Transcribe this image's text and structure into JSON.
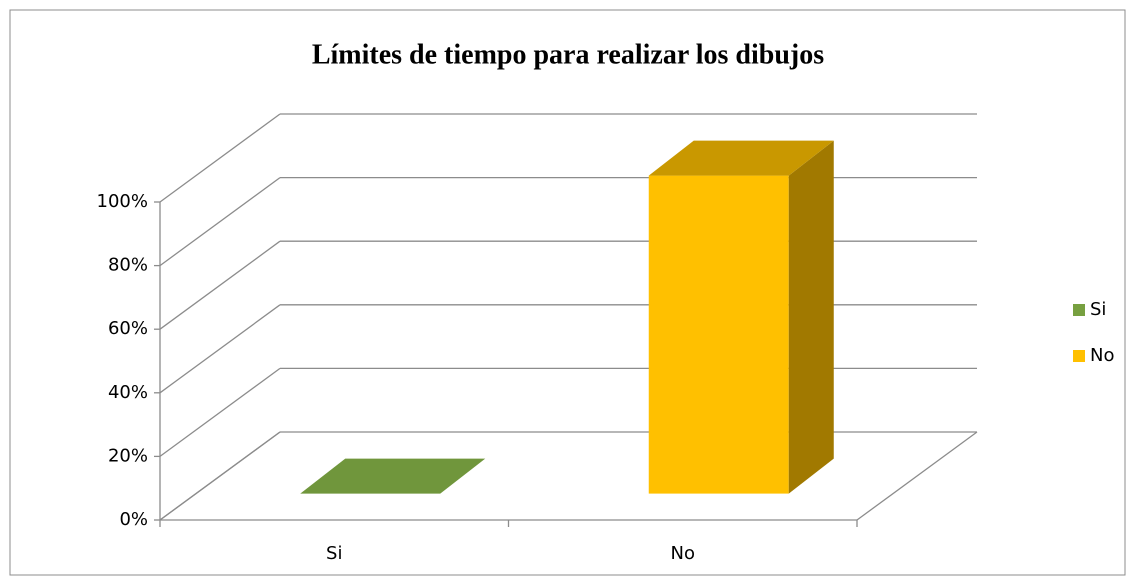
{
  "chart_data": {
    "type": "bar3d",
    "title": "Límites de tiempo para realizar los dibujos",
    "categories": [
      "Si",
      "No"
    ],
    "values": [
      0,
      100
    ],
    "colors": [
      "#77a040",
      "#ffc000"
    ],
    "ylim": [
      0,
      100
    ],
    "yticks": [
      {
        "value": 0,
        "label": "0%"
      },
      {
        "value": 20,
        "label": "20%"
      },
      {
        "value": 40,
        "label": "40%"
      },
      {
        "value": 60,
        "label": "60%"
      },
      {
        "value": 80,
        "label": "80%"
      },
      {
        "value": 100,
        "label": "100%"
      }
    ],
    "grid": true,
    "legend": "right"
  }
}
